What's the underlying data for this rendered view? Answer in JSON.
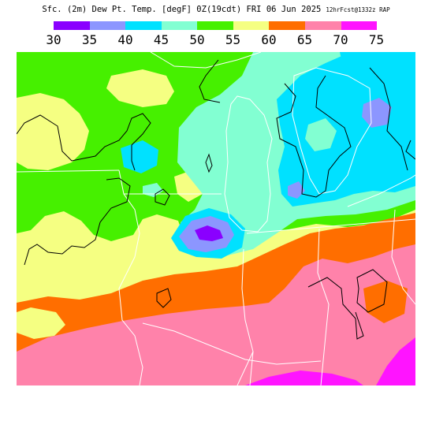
{
  "header": {
    "title": "Sfc. (2m) Dew Pt. Temp. [degF] 0Z(19cdt) FRI 06 Jun 2025",
    "model_stamp": "12hrFcst@1332z RAP"
  },
  "legend": {
    "labels": [
      "30",
      "35",
      "40",
      "45",
      "50",
      "55",
      "60",
      "65",
      "70",
      "75"
    ],
    "colors": [
      "#8a00ff",
      "#8c96ff",
      "#00e1ff",
      "#82ffd2",
      "#46f000",
      "#f5ff82",
      "#ff6e00",
      "#ff82aa",
      "#ff14ff"
    ]
  },
  "map": {
    "colors": {
      "below_30": "#8a00ff",
      "c30_35": "#8c96ff",
      "c35_40": "#00e1ff",
      "c40_45": "#82ffd2",
      "c45_50": "#46f000",
      "c50_55": "#f5ff82",
      "c55_60": "#ff6e00",
      "c60_65": "#ff82aa",
      "c65_70": "#ff14ff",
      "boundary": "#ffffff",
      "contour": "#000000"
    }
  }
}
